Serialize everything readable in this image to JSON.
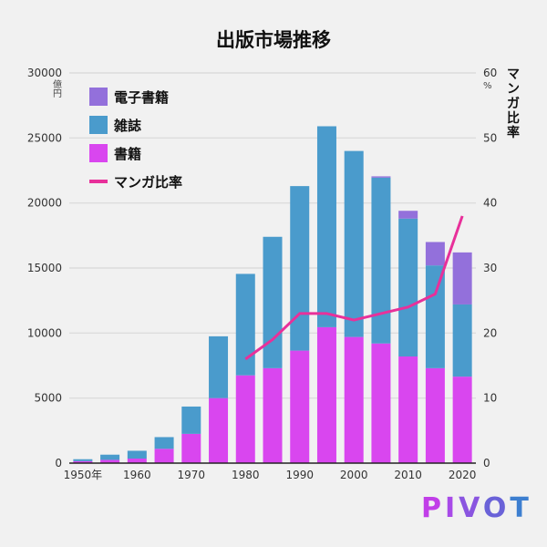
{
  "chart_data": {
    "type": "bar",
    "stacked": true,
    "title": "出版市場推移",
    "x": [
      1950,
      1955,
      1960,
      1965,
      1970,
      1975,
      1980,
      1985,
      1990,
      1995,
      2000,
      2005,
      2010,
      2015,
      2020
    ],
    "xtick_labels": [
      "1950年",
      "1960",
      "1970",
      "1980",
      "1990",
      "2000",
      "2010",
      "2020"
    ],
    "xtick_values": [
      1950,
      1960,
      1970,
      1980,
      1990,
      2000,
      2010,
      2020
    ],
    "ylabel_unit": "億\n円",
    "ylim": [
      0,
      30000
    ],
    "yticks": [
      0,
      5000,
      10000,
      15000,
      20000,
      25000,
      30000
    ],
    "y2label": "マンガ比率",
    "y2_unit": "%",
    "y2lim": [
      0,
      60
    ],
    "y2ticks": [
      0,
      10,
      20,
      30,
      40,
      50,
      60
    ],
    "grid": true,
    "legend_position": "top-left",
    "series": [
      {
        "name": "書籍",
        "color": "#d946ef",
        "kind": "bar",
        "values": [
          150,
          250,
          350,
          1100,
          2250,
          5000,
          6750,
          7300,
          8650,
          10450,
          9700,
          9200,
          8200,
          7300,
          6650
        ]
      },
      {
        "name": "雑誌",
        "color": "#4a9bcc",
        "kind": "bar",
        "values": [
          150,
          400,
          600,
          900,
          2100,
          4750,
          7800,
          10100,
          12650,
          15450,
          14300,
          12750,
          10600,
          7900,
          5550
        ]
      },
      {
        "name": "電子書籍",
        "color": "#9370db",
        "kind": "bar",
        "values": [
          0,
          0,
          0,
          0,
          0,
          0,
          0,
          0,
          0,
          0,
          0,
          100,
          600,
          1800,
          4000
        ]
      },
      {
        "name": "マンガ比率",
        "color": "#e8309a",
        "kind": "line",
        "axis": "right",
        "x": [
          1980,
          1985,
          1990,
          1995,
          2000,
          2005,
          2010,
          2015,
          2020
        ],
        "values": [
          16,
          19,
          23,
          23,
          22,
          23,
          24,
          26,
          38
        ]
      }
    ],
    "legend": [
      "電子書籍",
      "雑誌",
      "書籍",
      "マンガ比率"
    ]
  },
  "logo": {
    "text": "PIVOT"
  }
}
